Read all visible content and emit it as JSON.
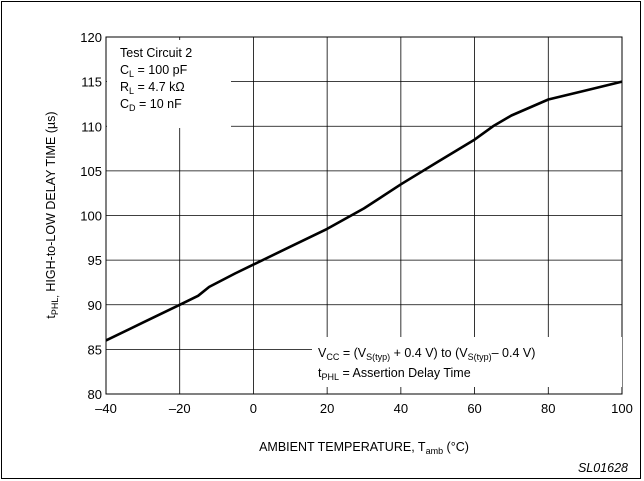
{
  "chart_data": {
    "type": "line",
    "title": "",
    "xlabel": "AMBIENT TEMPERATURE, T",
    "xlabel_sub": "amb",
    "xlabel_unit": " (°C)",
    "ylabel_main": "t",
    "ylabel_sub": "PHL,",
    "ylabel_rest": " HIGH-to-LOW DELAY TIME (µs)",
    "xlim": [
      -40,
      100
    ],
    "ylim": [
      80,
      120
    ],
    "xticks": [
      -40,
      -20,
      0,
      20,
      40,
      60,
      80,
      100
    ],
    "xtick_labels": [
      "–40",
      "–20",
      "0",
      "20",
      "40",
      "60",
      "80",
      "100"
    ],
    "yticks": [
      80,
      85,
      90,
      95,
      100,
      105,
      110,
      115,
      120
    ],
    "grid": true,
    "series": [
      {
        "x": [
          -40,
          -30,
          -20,
          -15,
          -12,
          -5,
          0,
          10,
          20,
          30,
          40,
          50,
          60,
          65,
          70,
          80,
          90,
          95,
          100
        ],
        "y": [
          86,
          88,
          90,
          91,
          92,
          93.5,
          94.5,
          96.5,
          98.5,
          100.8,
          103.5,
          106,
          108.5,
          110,
          111.2,
          113,
          114,
          114.5,
          115
        ]
      }
    ],
    "annotations": {
      "test_conditions": {
        "line1": "Test Circuit 2",
        "cl_main": "C",
        "cl_sub": "L",
        "cl_val": " = 100 pF",
        "rl_main": "R",
        "rl_sub": "L",
        "rl_val": " = 4.7 kΩ",
        "cd_main": "C",
        "cd_sub": "D",
        "cd_val": " = 10 nF"
      },
      "condition_note": {
        "vcc_main": "V",
        "vcc_sub": "CC",
        "vcc_mid1": " = (V",
        "vs_sub1": "S(typ)",
        "vcc_mid2": " + 0.4 V) to (V",
        "vs_sub2": "S(typ)",
        "vcc_end": "– 0.4 V)",
        "t_main": "t",
        "t_sub": "PHL",
        "t_rest": " = Assertion Delay Time"
      }
    },
    "figure_id": "SL01628"
  }
}
